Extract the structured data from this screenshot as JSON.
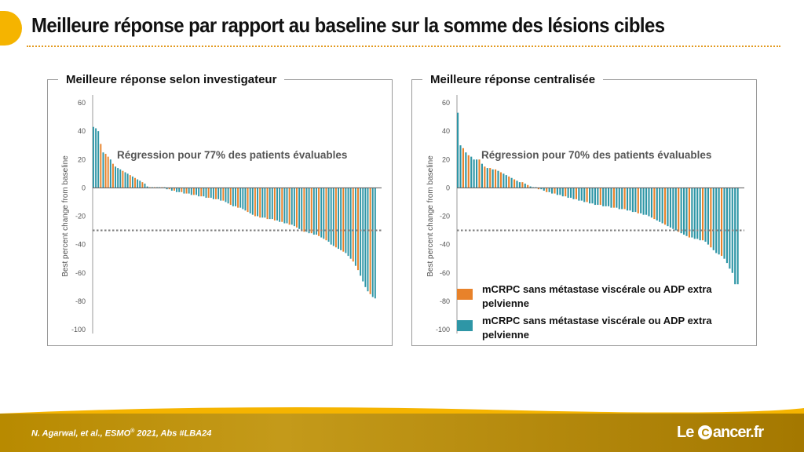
{
  "header": {
    "title": "Meilleure réponse par rapport au baseline sur la somme des lésions cibles"
  },
  "colors": {
    "orange": "#e8822a",
    "teal": "#2e96a6",
    "accent": "#f5b400",
    "dotted_line": "#7f7f7f"
  },
  "chart_data": [
    {
      "type": "bar",
      "title": "Meilleure réponse selon investigateur",
      "annotation": "Régression pour 77% des patients évaluables",
      "ylabel": "Best percent change from baseline",
      "ylim": [
        -100,
        60
      ],
      "yticks": [
        60,
        40,
        20,
        0,
        -20,
        -40,
        -60,
        -80,
        -100
      ],
      "reference_line": -30,
      "values": [
        43,
        42,
        40,
        31,
        25,
        24,
        22,
        20,
        17,
        15,
        14,
        13,
        12,
        11,
        10,
        9,
        8,
        7,
        6,
        5,
        4,
        3,
        1,
        0,
        0,
        0,
        0,
        0,
        0,
        0,
        -1,
        -1,
        -2,
        -2,
        -3,
        -3,
        -3,
        -4,
        -4,
        -4,
        -5,
        -5,
        -5,
        -6,
        -6,
        -6,
        -7,
        -7,
        -7,
        -8,
        -8,
        -8,
        -9,
        -9,
        -10,
        -11,
        -12,
        -13,
        -13,
        -14,
        -14,
        -15,
        -16,
        -17,
        -18,
        -19,
        -20,
        -20,
        -21,
        -21,
        -21,
        -22,
        -22,
        -22,
        -23,
        -23,
        -24,
        -24,
        -25,
        -25,
        -26,
        -26,
        -27,
        -28,
        -29,
        -30,
        -31,
        -31,
        -32,
        -32,
        -33,
        -33,
        -34,
        -35,
        -36,
        -37,
        -38,
        -40,
        -41,
        -42,
        -43,
        -44,
        -45,
        -46,
        -48,
        -50,
        -52,
        -55,
        -58,
        -62,
        -66,
        -70,
        -73,
        -75,
        -77,
        -78
      ],
      "groups": [
        "teal",
        "teal",
        "teal",
        "orange",
        "teal",
        "orange",
        "orange",
        "teal",
        "orange",
        "teal",
        "teal",
        "teal",
        "orange",
        "teal",
        "teal",
        "orange",
        "teal",
        "orange",
        "teal",
        "teal",
        "orange",
        "teal",
        "teal",
        "orange",
        "teal",
        "orange",
        "teal",
        "teal",
        "orange",
        "teal",
        "teal",
        "orange",
        "teal",
        "orange",
        "teal",
        "teal",
        "orange",
        "teal",
        "orange",
        "teal",
        "teal",
        "orange",
        "teal",
        "teal",
        "orange",
        "teal",
        "teal",
        "orange",
        "teal",
        "teal",
        "orange",
        "teal",
        "teal",
        "orange",
        "teal",
        "teal",
        "orange",
        "teal",
        "teal",
        "orange",
        "teal",
        "teal",
        "teal",
        "orange",
        "teal",
        "teal",
        "orange",
        "teal",
        "orange",
        "teal",
        "teal",
        "orange",
        "teal",
        "teal",
        "orange",
        "teal",
        "teal",
        "orange",
        "teal",
        "teal",
        "orange",
        "teal",
        "teal",
        "orange",
        "teal",
        "teal",
        "orange",
        "teal",
        "teal",
        "orange",
        "teal",
        "teal",
        "orange",
        "teal",
        "teal",
        "orange",
        "teal",
        "teal",
        "teal",
        "orange",
        "teal",
        "teal",
        "orange",
        "teal",
        "teal",
        "teal",
        "orange",
        "teal",
        "orange",
        "teal",
        "teal",
        "teal",
        "teal",
        "orange",
        "teal",
        "teal"
      ]
    },
    {
      "type": "bar",
      "title": "Meilleure réponse centralisée",
      "annotation": "Régression pour 70% des patients évaluables",
      "ylabel": "Best percent change from baseline",
      "ylim": [
        -100,
        60
      ],
      "yticks": [
        60,
        40,
        20,
        0,
        -20,
        -40,
        -60,
        -80,
        -100
      ],
      "reference_line": -30,
      "legend": [
        {
          "label": "mCRPC sans métastase viscérale ou ADP extra pelvienne",
          "color": "orange"
        },
        {
          "label": "mCRPC sans métastase viscérale ou ADP extra pelvienne",
          "color": "teal"
        }
      ],
      "values": [
        53,
        30,
        28,
        25,
        23,
        22,
        20,
        20,
        20,
        17,
        15,
        14,
        14,
        13,
        13,
        12,
        11,
        10,
        9,
        8,
        7,
        6,
        5,
        4,
        4,
        3,
        2,
        1,
        0,
        0,
        -1,
        -1,
        -2,
        -3,
        -3,
        -4,
        -4,
        -5,
        -5,
        -6,
        -6,
        -7,
        -7,
        -8,
        -8,
        -9,
        -9,
        -10,
        -10,
        -11,
        -11,
        -12,
        -12,
        -12,
        -13,
        -13,
        -13,
        -14,
        -14,
        -14,
        -15,
        -15,
        -15,
        -16,
        -16,
        -17,
        -17,
        -18,
        -18,
        -19,
        -19,
        -20,
        -21,
        -22,
        -23,
        -24,
        -25,
        -26,
        -27,
        -28,
        -29,
        -30,
        -31,
        -32,
        -33,
        -34,
        -35,
        -35,
        -36,
        -36,
        -37,
        -37,
        -38,
        -40,
        -42,
        -44,
        -46,
        -47,
        -48,
        -50,
        -53,
        -57,
        -60,
        -68,
        -68
      ],
      "groups": [
        "teal",
        "teal",
        "orange",
        "teal",
        "orange",
        "teal",
        "teal",
        "teal",
        "orange",
        "teal",
        "orange",
        "teal",
        "orange",
        "teal",
        "orange",
        "teal",
        "orange",
        "teal",
        "teal",
        "orange",
        "teal",
        "orange",
        "teal",
        "teal",
        "orange",
        "teal",
        "orange",
        "teal",
        "teal",
        "teal",
        "orange",
        "teal",
        "teal",
        "orange",
        "teal",
        "teal",
        "orange",
        "teal",
        "teal",
        "teal",
        "orange",
        "teal",
        "teal",
        "teal",
        "orange",
        "teal",
        "teal",
        "teal",
        "orange",
        "teal",
        "teal",
        "teal",
        "teal",
        "orange",
        "teal",
        "teal",
        "teal",
        "teal",
        "orange",
        "teal",
        "teal",
        "teal",
        "orange",
        "teal",
        "teal",
        "teal",
        "teal",
        "orange",
        "teal",
        "teal",
        "teal",
        "teal",
        "teal",
        "orange",
        "teal",
        "teal",
        "teal",
        "orange",
        "teal",
        "teal",
        "teal",
        "teal",
        "orange",
        "teal",
        "teal",
        "teal",
        "orange",
        "teal",
        "teal",
        "teal",
        "teal",
        "orange",
        "teal",
        "teal",
        "orange",
        "teal",
        "teal",
        "teal",
        "orange",
        "teal",
        "teal",
        "teal",
        "teal",
        "teal",
        "teal"
      ]
    }
  ],
  "footer": {
    "citation_prefix": "N. Agarwal, et al.,  ESMO",
    "citation_sup": "®",
    "citation_suffix": " 2021, Abs #LBA24",
    "logo_left": "Le",
    "logo_c": "C",
    "logo_right": "ancer.fr"
  }
}
